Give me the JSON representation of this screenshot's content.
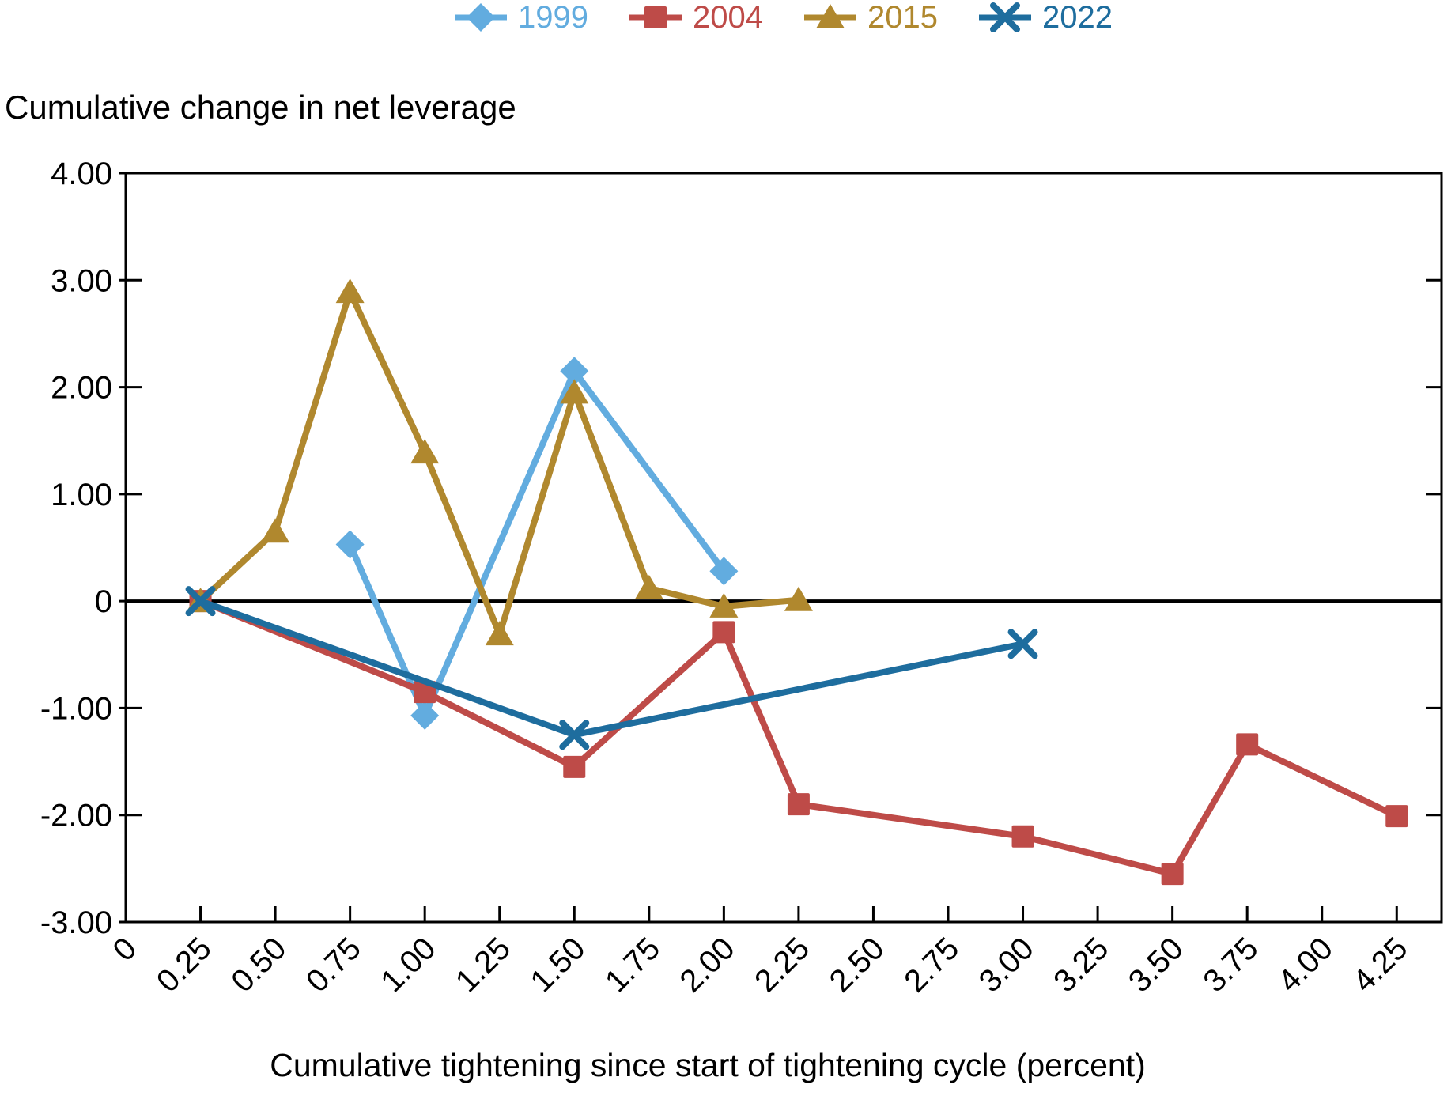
{
  "chart_data": {
    "type": "line",
    "title": "Cumulative change in net leverage",
    "xlabel": "Cumulative tightening since start of tightening cycle (percent)",
    "ylabel": "Cumulative change in net leverage",
    "xlim": [
      0,
      4.4
    ],
    "ylim": [
      -3,
      4
    ],
    "grid": false,
    "zero_line": true,
    "legend_position": "top-center",
    "x_ticks": {
      "values": [
        0,
        0.25,
        0.5,
        0.75,
        1.0,
        1.25,
        1.5,
        1.75,
        2.0,
        2.25,
        2.5,
        2.75,
        3.0,
        3.25,
        3.5,
        3.75,
        4.0,
        4.25
      ],
      "labels": [
        "0",
        "0.25",
        "0.50",
        "0.75",
        "1.00",
        "1.25",
        "1.50",
        "1.75",
        "2.00",
        "2.25",
        "2.50",
        "2.75",
        "3.00",
        "3.25",
        "3.50",
        "3.75",
        "4.00",
        "4.25"
      ]
    },
    "y_ticks": {
      "values": [
        4,
        3,
        2,
        1,
        0,
        -1,
        -2,
        -3
      ],
      "labels": [
        "4.00",
        "3.00",
        "2.00",
        "1.00",
        "0",
        "-1.00",
        "-2.00",
        "-3.00"
      ]
    },
    "series": [
      {
        "name": "1999",
        "color": "#62ACDF",
        "marker": "diamond",
        "points": [
          [
            0.75,
            0.53
          ],
          [
            1.0,
            -1.07
          ],
          [
            1.5,
            2.15
          ],
          [
            2.0,
            0.28
          ]
        ]
      },
      {
        "name": "2004",
        "color": "#BE4B48",
        "marker": "square",
        "points": [
          [
            0.25,
            0.0
          ],
          [
            1.0,
            -0.85
          ],
          [
            1.5,
            -1.55
          ],
          [
            2.0,
            -0.29
          ],
          [
            2.25,
            -1.9
          ],
          [
            3.0,
            -2.2
          ],
          [
            3.5,
            -2.55
          ],
          [
            3.75,
            -1.34
          ],
          [
            4.25,
            -2.01
          ]
        ]
      },
      {
        "name": "2015",
        "color": "#B0882E",
        "marker": "triangle",
        "points": [
          [
            0.25,
            0.0
          ],
          [
            0.5,
            0.65
          ],
          [
            0.75,
            2.89
          ],
          [
            1.0,
            1.39
          ],
          [
            1.25,
            -0.31
          ],
          [
            1.5,
            1.95
          ],
          [
            1.75,
            0.12
          ],
          [
            2.0,
            -0.05
          ],
          [
            2.25,
            0.01
          ]
        ]
      },
      {
        "name": "2022",
        "color": "#1E6D9E",
        "marker": "x",
        "points": [
          [
            0.25,
            0.0
          ],
          [
            1.5,
            -1.25
          ],
          [
            3.0,
            -0.4
          ]
        ]
      }
    ]
  }
}
